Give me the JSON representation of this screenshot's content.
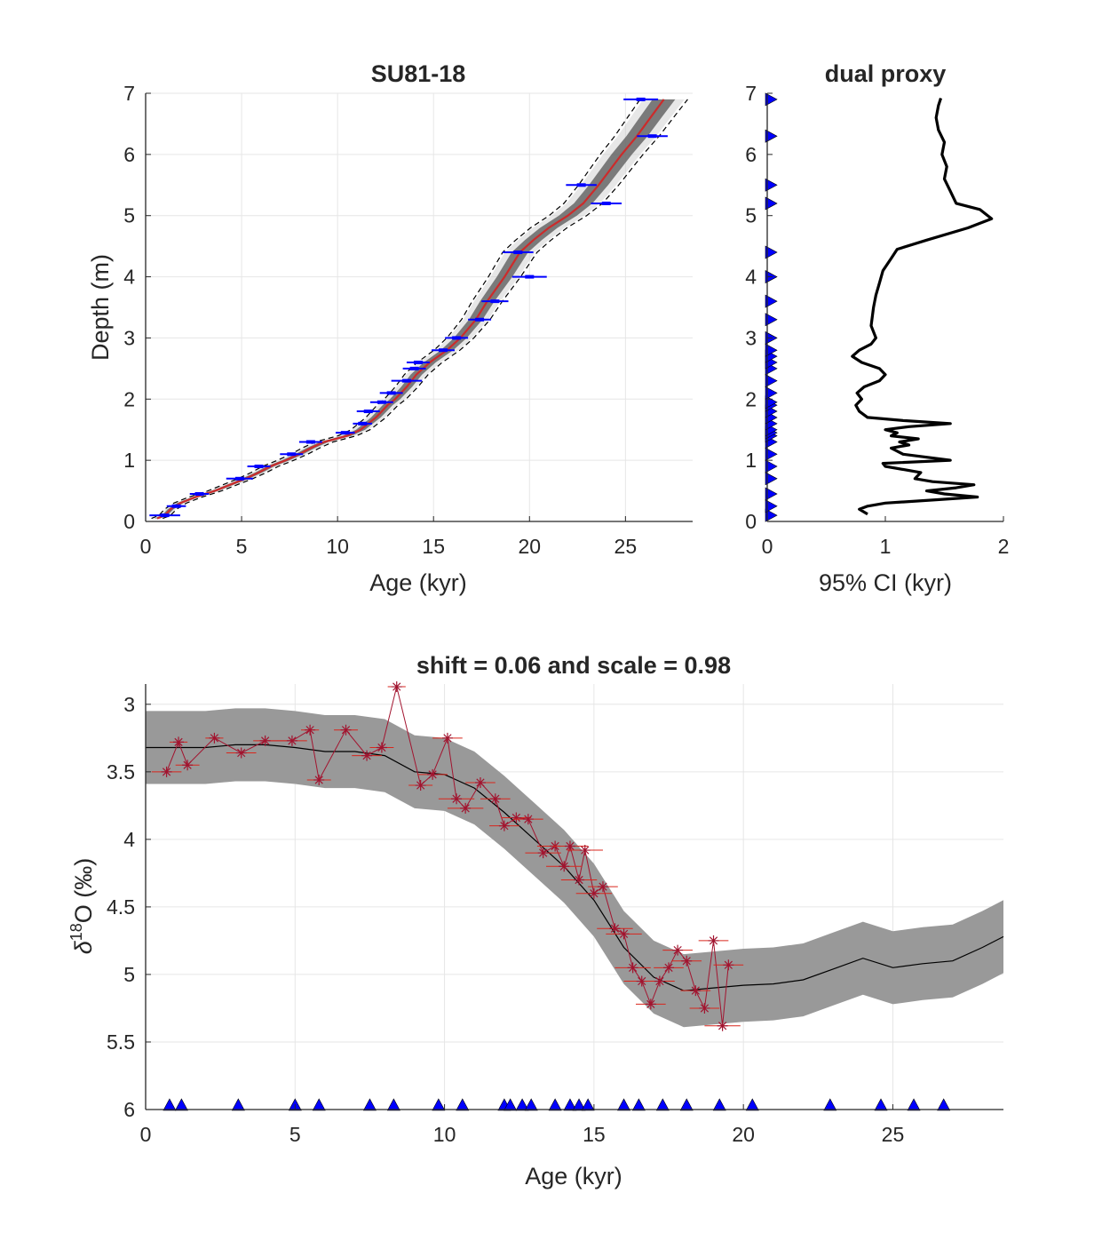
{
  "colors": {
    "axis": "#262626",
    "grid": "#e6e6e6",
    "dates": "#0000ff",
    "median": "#cc2b2b",
    "ensemble": "#555555",
    "proxy": "#a2142f",
    "envelope": "#999999",
    "line": "#000000"
  },
  "chart_data": [
    {
      "type": "line",
      "title": "SU81-18",
      "xlabel": "Age (kyr)",
      "ylabel": "Depth (m)",
      "xlim": [
        0,
        28.5
      ],
      "ylim": [
        0,
        7
      ],
      "y_reversed": false,
      "grid": true,
      "xticks": [
        0,
        5,
        10,
        15,
        20,
        25
      ],
      "yticks": [
        0,
        1,
        2,
        3,
        4,
        5,
        6,
        7
      ],
      "age_model_median": {
        "depth": [
          0.05,
          0.1,
          0.2,
          0.3,
          0.4,
          0.5,
          0.6,
          0.7,
          0.8,
          0.9,
          1.0,
          1.1,
          1.2,
          1.3,
          1.4,
          1.5,
          1.6,
          1.7,
          1.8,
          1.9,
          2.0,
          2.2,
          2.4,
          2.6,
          2.8,
          3.0,
          3.3,
          3.6,
          4.0,
          4.4,
          4.6,
          4.8,
          5.0,
          5.2,
          5.5,
          6.0,
          6.3,
          6.6,
          6.9
        ],
        "age": [
          0.6,
          1.0,
          1.3,
          1.8,
          2.6,
          3.6,
          4.4,
          5.2,
          5.9,
          6.5,
          7.3,
          8.0,
          8.6,
          9.3,
          10.5,
          11.2,
          11.6,
          12.0,
          12.3,
          12.6,
          13.0,
          13.6,
          14.1,
          14.8,
          15.7,
          16.4,
          17.2,
          17.8,
          18.7,
          19.5,
          20.2,
          21.0,
          22.0,
          22.8,
          23.6,
          24.8,
          25.6,
          26.3,
          27.0
        ]
      },
      "dates": {
        "depth": [
          0.1,
          0.25,
          0.45,
          0.7,
          0.9,
          1.1,
          1.3,
          1.45,
          1.6,
          1.8,
          1.95,
          2.1,
          2.3,
          2.5,
          2.6,
          2.8,
          3.0,
          3.3,
          3.6,
          4.0,
          4.4,
          5.2,
          5.5,
          6.3,
          6.9
        ],
        "age": [
          1.0,
          1.6,
          2.8,
          4.9,
          5.9,
          7.6,
          8.6,
          10.4,
          11.3,
          11.6,
          12.3,
          12.8,
          13.6,
          14.0,
          14.2,
          15.5,
          16.2,
          17.4,
          18.2,
          20.0,
          19.4,
          24.0,
          22.7,
          26.4,
          25.8
        ],
        "err": [
          0.8,
          0.5,
          0.5,
          0.7,
          0.6,
          0.6,
          0.6,
          0.5,
          0.5,
          0.6,
          0.6,
          0.6,
          0.8,
          0.6,
          0.6,
          0.6,
          0.6,
          0.6,
          0.7,
          0.9,
          0.8,
          0.8,
          0.8,
          0.8,
          0.9
        ]
      }
    },
    {
      "type": "line",
      "title": "dual proxy",
      "xlabel": "95% CI (kyr)",
      "ylabel": "",
      "xlim": [
        0,
        2
      ],
      "ylim": [
        0,
        7
      ],
      "grid": false,
      "xticks": [
        0,
        1,
        2
      ],
      "yticks": [
        0,
        1,
        2,
        3,
        4,
        5,
        6,
        7
      ],
      "ci_curve": {
        "depth": [
          0.12,
          0.2,
          0.25,
          0.3,
          0.35,
          0.4,
          0.45,
          0.5,
          0.55,
          0.6,
          0.65,
          0.7,
          0.8,
          0.9,
          0.95,
          1.0,
          1.1,
          1.2,
          1.25,
          1.3,
          1.35,
          1.4,
          1.45,
          1.5,
          1.55,
          1.6,
          1.65,
          1.7,
          1.8,
          1.9,
          2.0,
          2.1,
          2.2,
          2.3,
          2.4,
          2.5,
          2.6,
          2.7,
          2.8,
          2.9,
          3.0,
          3.2,
          3.5,
          3.7,
          3.9,
          4.1,
          4.3,
          4.45,
          4.6,
          4.8,
          4.95,
          5.1,
          5.2,
          5.4,
          5.6,
          5.8,
          6.0,
          6.2,
          6.4,
          6.6,
          6.8,
          6.92
        ],
        "ci": [
          0.85,
          0.78,
          0.85,
          1.0,
          1.4,
          1.78,
          1.5,
          1.35,
          1.6,
          1.75,
          1.4,
          1.25,
          1.3,
          1.0,
          0.98,
          1.55,
          1.15,
          1.05,
          1.2,
          1.12,
          1.28,
          1.05,
          1.1,
          1.0,
          1.2,
          1.55,
          1.15,
          0.85,
          0.78,
          0.75,
          0.8,
          0.76,
          0.82,
          0.95,
          1.0,
          0.95,
          0.8,
          0.72,
          0.78,
          0.88,
          0.92,
          0.88,
          0.9,
          0.92,
          0.95,
          0.98,
          1.05,
          1.1,
          1.35,
          1.7,
          1.9,
          1.8,
          1.6,
          1.55,
          1.5,
          1.52,
          1.48,
          1.5,
          1.45,
          1.43,
          1.45,
          1.47
        ]
      },
      "date_markers_depth": [
        0.1,
        0.25,
        0.45,
        0.7,
        0.9,
        1.1,
        1.3,
        1.4,
        1.45,
        1.5,
        1.6,
        1.7,
        1.8,
        1.9,
        1.95,
        2.1,
        2.3,
        2.5,
        2.6,
        2.7,
        2.8,
        3.0,
        3.3,
        3.6,
        4.0,
        4.4,
        5.2,
        5.5,
        6.3,
        6.9
      ]
    },
    {
      "type": "line",
      "title": "shift = 0.06 and scale = 0.98",
      "xlabel": "Age (kyr)",
      "ylabel": "δ18O (‰)",
      "xlim": [
        0,
        28.7
      ],
      "ylim": [
        2.85,
        6
      ],
      "y_reversed": true,
      "grid": true,
      "xticks": [
        0,
        5,
        10,
        15,
        20,
        25
      ],
      "yticks": [
        3,
        3.5,
        4,
        4.5,
        5,
        5.5,
        6
      ],
      "stack_mean": {
        "age": [
          0,
          1,
          2,
          3,
          4,
          5,
          6,
          7,
          8,
          9,
          10,
          11,
          12,
          13,
          14,
          15,
          16,
          17,
          18,
          19,
          20,
          21,
          22,
          23,
          24,
          25,
          26,
          27,
          28,
          28.7
        ],
        "d18O": [
          3.32,
          3.32,
          3.32,
          3.3,
          3.3,
          3.32,
          3.35,
          3.35,
          3.38,
          3.5,
          3.52,
          3.62,
          3.8,
          4.0,
          4.2,
          4.45,
          4.8,
          5.02,
          5.12,
          5.1,
          5.08,
          5.07,
          5.04,
          4.96,
          4.88,
          4.95,
          4.92,
          4.9,
          4.8,
          4.72
        ]
      },
      "stack_band_halfwidth": 0.27,
      "proxy": {
        "age": [
          0.7,
          1.1,
          1.4,
          2.3,
          3.2,
          4.0,
          4.9,
          5.5,
          5.8,
          6.7,
          7.4,
          7.9,
          8.4,
          9.2,
          9.6,
          10.1,
          10.4,
          10.7,
          11.2,
          11.7,
          12.0,
          12.4,
          12.8,
          13.3,
          13.7,
          14.0,
          14.2,
          14.5,
          14.7,
          15.0,
          15.3,
          15.7,
          16.0,
          16.3,
          16.6,
          16.9,
          17.2,
          17.5,
          17.8,
          18.1,
          18.4,
          18.7,
          19.0,
          19.3,
          19.5
        ],
        "d18O": [
          3.5,
          3.28,
          3.45,
          3.25,
          3.36,
          3.27,
          3.27,
          3.19,
          3.56,
          3.19,
          3.38,
          3.32,
          2.87,
          3.6,
          3.52,
          3.25,
          3.7,
          3.77,
          3.58,
          3.7,
          3.9,
          3.84,
          3.85,
          4.1,
          4.05,
          4.2,
          4.05,
          4.3,
          4.08,
          4.4,
          4.35,
          4.66,
          4.7,
          4.95,
          5.05,
          5.22,
          5.05,
          4.95,
          4.82,
          4.9,
          5.12,
          5.25,
          4.75,
          5.38,
          4.93
        ],
        "age_err": [
          0.5,
          0.3,
          0.4,
          0.3,
          0.5,
          0.4,
          0.5,
          0.3,
          0.4,
          0.4,
          0.5,
          0.4,
          0.3,
          0.4,
          0.5,
          0.5,
          0.6,
          0.6,
          0.5,
          0.5,
          0.5,
          0.5,
          0.5,
          0.6,
          0.6,
          0.6,
          0.6,
          0.6,
          0.6,
          0.6,
          0.5,
          0.6,
          0.6,
          0.6,
          0.6,
          0.5,
          0.5,
          0.5,
          0.5,
          0.5,
          0.5,
          0.5,
          0.5,
          0.6,
          0.5
        ]
      },
      "date_markers_age": [
        0.8,
        1.2,
        3.1,
        5.0,
        5.8,
        7.5,
        8.3,
        9.8,
        10.6,
        12.0,
        12.2,
        12.6,
        12.9,
        13.7,
        14.2,
        14.5,
        14.8,
        16.0,
        16.5,
        17.3,
        18.1,
        19.2,
        20.3,
        22.9,
        24.6,
        25.7,
        26.7
      ]
    }
  ]
}
